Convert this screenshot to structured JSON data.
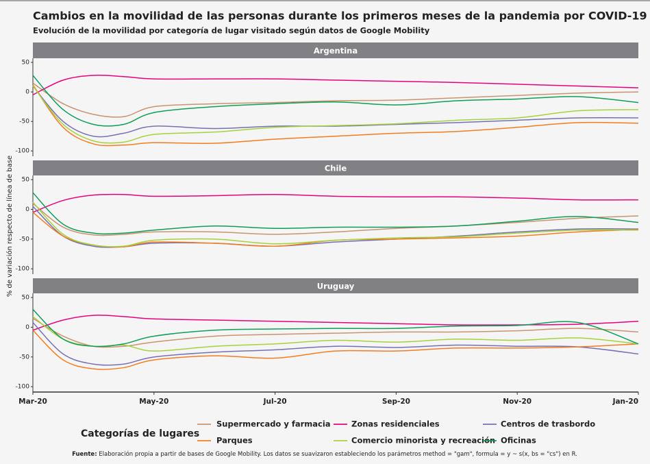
{
  "chart_data": {
    "type": "line",
    "title": "Cambios en la movilidad de las personas durante los primeros meses de la pandemia por COVID-19",
    "subtitle": "Evolución de la movilidad por categoría de lugar visitado según datos de Google Mobility",
    "ylabel": "% de variación respecto de línea de base",
    "legend_title": "Categorías de lugares",
    "legend": [
      {
        "name": "Supermercado y farmacia",
        "color": "#c8936e"
      },
      {
        "name": "Zonas residenciales",
        "color": "#e6007e"
      },
      {
        "name": "Centros de trasbordo",
        "color": "#7570b3"
      },
      {
        "name": "Parques",
        "color": "#f47c20"
      },
      {
        "name": "Comercio minorista y recreación",
        "color": "#a6d13d"
      },
      {
        "name": "Oficinas",
        "color": "#0f9d58"
      }
    ],
    "x": [
      0,
      0.5,
      1,
      1.5,
      2,
      3,
      4,
      5,
      6,
      7,
      8,
      9,
      10
    ],
    "xlim": [
      0,
      10
    ],
    "xticks": [
      {
        "value": 0,
        "label": "Mar-20"
      },
      {
        "value": 2,
        "label": "May-20"
      },
      {
        "value": 4,
        "label": "Jul-20"
      },
      {
        "value": 6,
        "label": "Sep-20"
      },
      {
        "value": 8,
        "label": "Nov-20"
      },
      {
        "value": 10,
        "label": "Jan-20"
      }
    ],
    "ylim": [
      -109,
      57
    ],
    "yticks": [
      -100,
      -50,
      0,
      50
    ],
    "panels": [
      {
        "title": "Argentina",
        "series": [
          {
            "values": [
              15,
              -20,
              -38,
              -42,
              -25,
              -20,
              -18,
              -15,
              -14,
              -10,
              -6,
              -2,
              0
            ]
          },
          {
            "values": [
              -5,
              20,
              28,
              26,
              22,
              22,
              22,
              20,
              18,
              16,
              13,
              10,
              7
            ]
          },
          {
            "values": [
              10,
              -50,
              -75,
              -70,
              -58,
              -62,
              -58,
              -58,
              -55,
              -52,
              -48,
              -44,
              -44
            ]
          },
          {
            "values": [
              12,
              -60,
              -88,
              -90,
              -86,
              -87,
              -80,
              -75,
              -70,
              -67,
              -60,
              -52,
              -53
            ]
          },
          {
            "values": [
              10,
              -55,
              -83,
              -85,
              -72,
              -68,
              -60,
              -57,
              -54,
              -48,
              -44,
              -32,
              -30
            ]
          },
          {
            "values": [
              28,
              -30,
              -55,
              -55,
              -35,
              -25,
              -20,
              -17,
              -22,
              -15,
              -12,
              -8,
              -18
            ]
          }
        ]
      },
      {
        "title": "Chile",
        "series": [
          {
            "values": [
              10,
              -30,
              -43,
              -42,
              -38,
              -38,
              -42,
              -38,
              -32,
              -28,
              -22,
              -15,
              -11
            ]
          },
          {
            "values": [
              -5,
              15,
              24,
              25,
              22,
              23,
              25,
              22,
              21,
              21,
              19,
              16,
              16
            ]
          },
          {
            "values": [
              5,
              -45,
              -62,
              -63,
              -57,
              -57,
              -62,
              -55,
              -50,
              -45,
              -38,
              -33,
              -33
            ]
          },
          {
            "values": [
              -5,
              -45,
              -60,
              -63,
              -55,
              -57,
              -62,
              -52,
              -50,
              -48,
              -45,
              -38,
              -34
            ]
          },
          {
            "values": [
              12,
              -42,
              -60,
              -62,
              -52,
              -50,
              -58,
              -52,
              -48,
              -46,
              -40,
              -35,
              -35
            ]
          },
          {
            "values": [
              28,
              -25,
              -40,
              -40,
              -35,
              -28,
              -32,
              -30,
              -30,
              -28,
              -20,
              -12,
              -22
            ]
          }
        ]
      },
      {
        "title": "Uruguay",
        "series": [
          {
            "values": [
              15,
              -15,
              -32,
              -32,
              -25,
              -15,
              -12,
              -10,
              -8,
              -8,
              -6,
              -2,
              -8
            ]
          },
          {
            "values": [
              -5,
              12,
              20,
              18,
              14,
              12,
              10,
              8,
              6,
              4,
              4,
              5,
              10
            ]
          },
          {
            "values": [
              8,
              -45,
              -62,
              -62,
              -50,
              -42,
              -38,
              -32,
              -34,
              -30,
              -32,
              -33,
              -45
            ]
          },
          {
            "values": [
              -5,
              -55,
              -70,
              -68,
              -55,
              -48,
              -52,
              -40,
              -40,
              -35,
              -35,
              -33,
              -28
            ]
          },
          {
            "values": [
              18,
              -20,
              -32,
              -30,
              -40,
              -32,
              -28,
              -22,
              -25,
              -20,
              -22,
              -18,
              -28
            ]
          },
          {
            "values": [
              30,
              -20,
              -32,
              -28,
              -15,
              -5,
              -3,
              -2,
              -2,
              2,
              3,
              8,
              -28
            ]
          }
        ]
      }
    ],
    "source_label": "Fuente:",
    "source": "Elaboración propia a partir de bases de Google Mobility. Los datos se suavizaron estableciendo los parámetros method = \"gam\", formula = y ~ s(x, bs = \"cs\") en R."
  }
}
